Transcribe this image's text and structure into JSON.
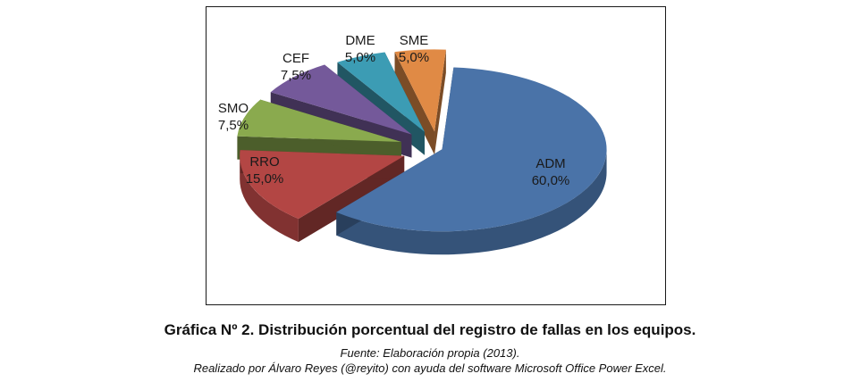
{
  "chart_data": {
    "type": "pie",
    "style": "3d-exploded",
    "categories": [
      "ADM",
      "RRO",
      "SMO",
      "CEF",
      "DME",
      "SME"
    ],
    "values": [
      60.0,
      15.0,
      7.5,
      7.5,
      5.0,
      5.0
    ],
    "value_labels": [
      "60,0%",
      "15,0%",
      "7,5%",
      "7,5%",
      "5,0%",
      "5,0%"
    ],
    "colors": [
      "#4a73a8",
      "#b34644",
      "#8aaa4e",
      "#74599a",
      "#3c9cb4",
      "#e08a45"
    ],
    "legend": "none"
  },
  "caption": {
    "title": "Gráfica Nº 2. Distribución porcentual del registro de fallas en los equipos.",
    "source": "Fuente: Elaboración propia (2013).",
    "credit": "Realizado por Álvaro Reyes (@reyito) con ayuda del software Microsoft Office Power Excel."
  }
}
